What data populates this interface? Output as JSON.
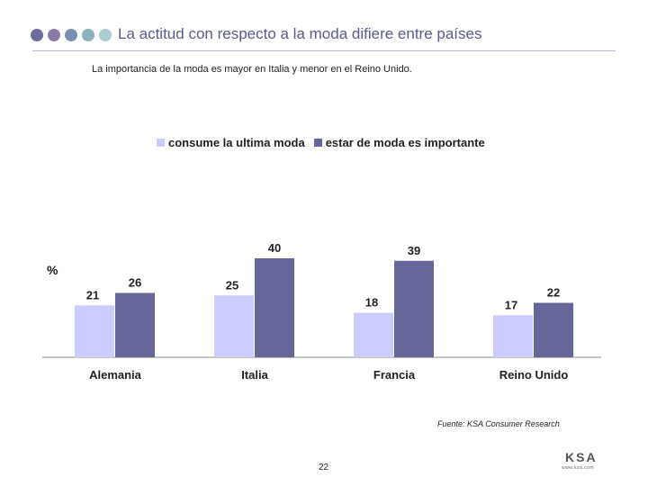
{
  "header": {
    "title": "La actitud con respecto a la moda difiere entre países",
    "dot_colors": [
      "#6b6b9c",
      "#8a7aa8",
      "#7a8fb0",
      "#8fb0bd",
      "#a9cdd0"
    ]
  },
  "subtitle": "La importancia de la moda es mayor en Italia y menor en el Reino Unido.",
  "chart_data": {
    "type": "bar",
    "title": "",
    "ylabel": "%",
    "xlabel": "",
    "ylim": [
      0,
      45
    ],
    "categories": [
      "Alemania",
      "Italia",
      "Francia",
      "Reino Unido"
    ],
    "series": [
      {
        "name": "consume la ultima moda",
        "values": [
          21,
          25,
          18,
          17
        ],
        "color": "#ccccff"
      },
      {
        "name": "estar de moda es importante",
        "values": [
          26,
          40,
          39,
          22
        ],
        "color": "#666699"
      }
    ],
    "legend": "top",
    "grid": false
  },
  "footer": {
    "source": "Fuente: KSA Consumer Research",
    "page_number": "22",
    "logo_text": "KSA",
    "logo_subtext": "www.ksa.com"
  }
}
